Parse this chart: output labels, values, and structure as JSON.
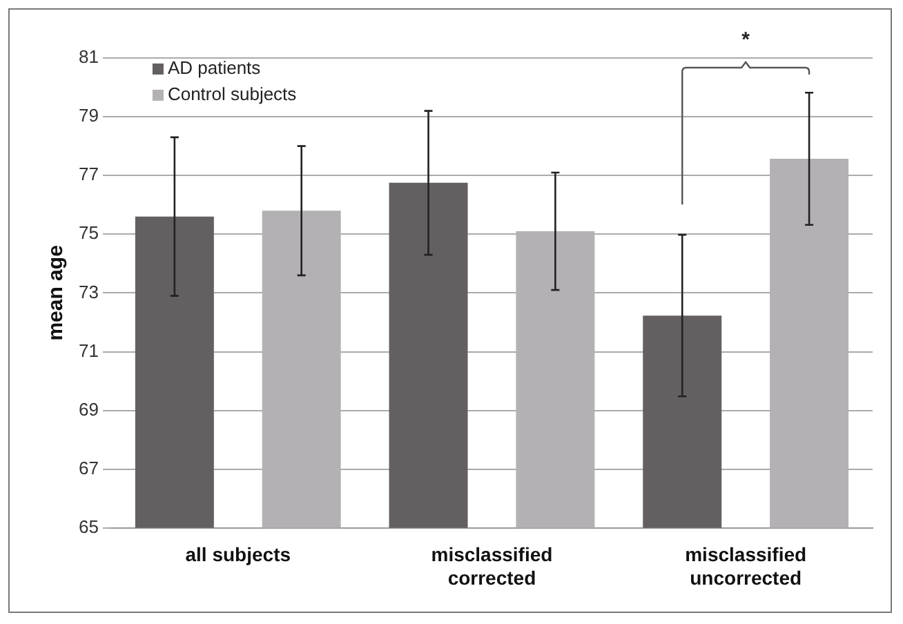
{
  "chart_data": {
    "type": "bar",
    "ylabel": "mean age",
    "categories": [
      "all subjects",
      "misclassified corrected",
      "misclassified uncorrected"
    ],
    "series": [
      {
        "name": "AD patients",
        "color": "#646062",
        "values": [
          75.6,
          76.75,
          72.23
        ],
        "errors": [
          2.7,
          2.45,
          2.75
        ]
      },
      {
        "name": "Control subjects",
        "color": "#b4b1b4",
        "values": [
          75.8,
          75.1,
          77.57
        ],
        "errors": [
          2.2,
          2,
          2.25
        ]
      }
    ],
    "ylim": [
      65,
      81
    ],
    "yticks": [
      65,
      67,
      69,
      71,
      73,
      75,
      77,
      79,
      81
    ],
    "grid": "y",
    "legend": "top left",
    "annotations": [
      "*"
    ]
  }
}
